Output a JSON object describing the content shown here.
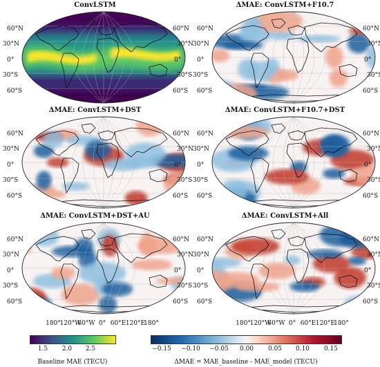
{
  "panels": [
    {
      "title": "ConvLSTM",
      "type": "baseline"
    },
    {
      "title": "ΔMAE: ConvLSTM+F10.7",
      "type": "delta"
    },
    {
      "title": "ΔMAE: ConvLSTM+DST",
      "type": "delta"
    },
    {
      "title": "ΔMAE: ConvLSTM+F10.7+DST",
      "type": "delta"
    },
    {
      "title": "ΔMAE: ConvLSTM+DST+AU",
      "type": "delta"
    },
    {
      "title": "ΔMAE: ConvLSTM+All",
      "type": "delta"
    }
  ],
  "lat_labels": [
    "60°N",
    "30°N",
    "0°",
    "30°S",
    "60°S"
  ],
  "lon_labels": [
    "180°",
    "120°W",
    "60°W",
    "0°",
    "60°E",
    "120°E",
    "180°"
  ],
  "colorbar_baseline": {
    "colormap": "viridis",
    "ticks": [
      "1.5",
      "2.0",
      "2.5"
    ],
    "label": "Baseline MAE (TECU)"
  },
  "colorbar_delta": {
    "colormap": "RdBu_r",
    "ticks": [
      "−0.15",
      "−0.10",
      "−0.05",
      "0.00",
      "0.05",
      "0.10",
      "0.15"
    ],
    "label": "ΔMAE = MAE_baseline - MAE_model (TECU)"
  }
}
